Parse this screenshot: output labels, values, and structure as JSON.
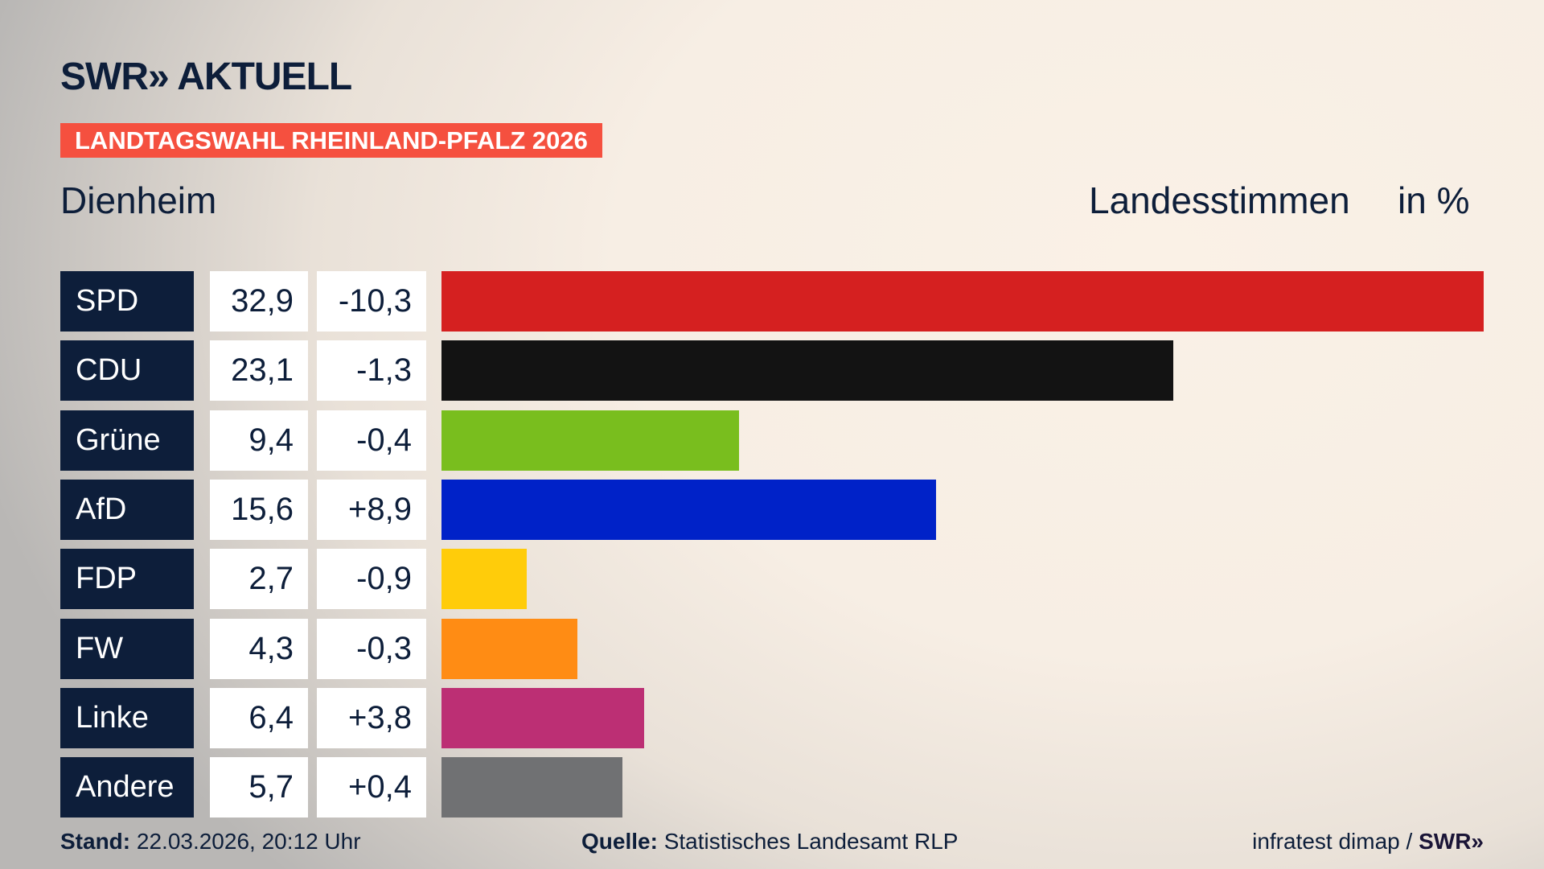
{
  "header": {
    "logo": "SWR» AKTUELL",
    "banner": "LANDTAGSWAHL RHEINLAND-PFALZ 2026",
    "place": "Dienheim",
    "subtitle": "Landesstimmen",
    "unit": "in %"
  },
  "chart_data": {
    "type": "bar",
    "orientation": "horizontal",
    "categories": [
      "SPD",
      "CDU",
      "Grüne",
      "AfD",
      "FDP",
      "FW",
      "Linke",
      "Andere"
    ],
    "values": [
      32.9,
      23.1,
      9.4,
      15.6,
      2.7,
      4.3,
      6.4,
      5.7
    ],
    "value_labels": [
      "32,9",
      "23,1",
      "9,4",
      "15,6",
      "2,7",
      "4,3",
      "6,4",
      "5,7"
    ],
    "change_labels": [
      "-10,3",
      "-1,3",
      "-0,4",
      "+8,9",
      "-0,9",
      "-0,3",
      "+3,8",
      "+0,4"
    ],
    "changes": [
      -10.3,
      -1.3,
      -0.4,
      8.9,
      -0.9,
      -0.3,
      3.8,
      0.4
    ],
    "colors": [
      "#d52020",
      "#131313",
      "#79be1e",
      "#0022c8",
      "#ffcc0a",
      "#ff8c14",
      "#bc2f74",
      "#707173"
    ],
    "grid": false
  },
  "footer": {
    "stand_label": "Stand:",
    "stand_value": "22.03.2026, 20:12 Uhr",
    "source_label": "Quelle:",
    "source_value": "Statistisches Landesamt RLP",
    "credit": "infratest dimap /",
    "credit_logo": "SWR»"
  }
}
